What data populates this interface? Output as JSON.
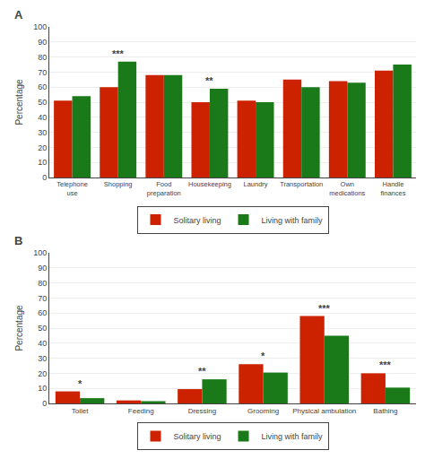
{
  "chart_data": [
    {
      "type": "bar",
      "title": "A",
      "categories": [
        "Telephone\nuse",
        "Shopping",
        "Food\npreparation",
        "Housekeeping",
        "Laundry",
        "Transportation",
        "Own\nmedications",
        "Handle\nfinances"
      ],
      "series": [
        {
          "name": "Solitary living",
          "color": "#cc2200",
          "values": [
            51,
            60,
            68,
            50,
            51,
            65,
            64,
            71
          ]
        },
        {
          "name": "Living with family",
          "color": "#1a7a1a",
          "values": [
            54,
            77,
            68,
            59,
            50,
            60,
            63,
            75
          ]
        }
      ],
      "annotations": [
        {
          "category": "Shopping",
          "text": "***"
        },
        {
          "category": "Housekeeping",
          "text": "**"
        }
      ],
      "ylabel": "Percentage",
      "ylim": [
        0,
        100
      ],
      "yticks": [
        0,
        10,
        20,
        30,
        40,
        50,
        60,
        70,
        80,
        90,
        100
      ],
      "grid": true,
      "legend": "bottom"
    },
    {
      "type": "bar",
      "title": "B",
      "categories": [
        "Toilet",
        "Feeding",
        "Dressing",
        "Grooming",
        "Physical ambulation",
        "Bathing"
      ],
      "series": [
        {
          "name": "Solitary living",
          "color": "#cc2200",
          "values": [
            8,
            2,
            9.5,
            26,
            58,
            20
          ]
        },
        {
          "name": "Living with family",
          "color": "#1a7a1a",
          "values": [
            3.5,
            1.5,
            16,
            20.5,
            45,
            10.5
          ]
        }
      ],
      "annotations": [
        {
          "category": "Toilet",
          "text": "*"
        },
        {
          "category": "Dressing",
          "text": "**"
        },
        {
          "category": "Grooming",
          "text": "*"
        },
        {
          "category": "Physical ambulation",
          "text": "***"
        },
        {
          "category": "Bathing",
          "text": "***"
        }
      ],
      "ylabel": "Percentage",
      "ylim": [
        0,
        100
      ],
      "yticks": [
        0,
        10,
        20,
        30,
        40,
        50,
        60,
        70,
        80,
        90,
        100
      ],
      "grid": true,
      "legend": "bottom"
    }
  ]
}
